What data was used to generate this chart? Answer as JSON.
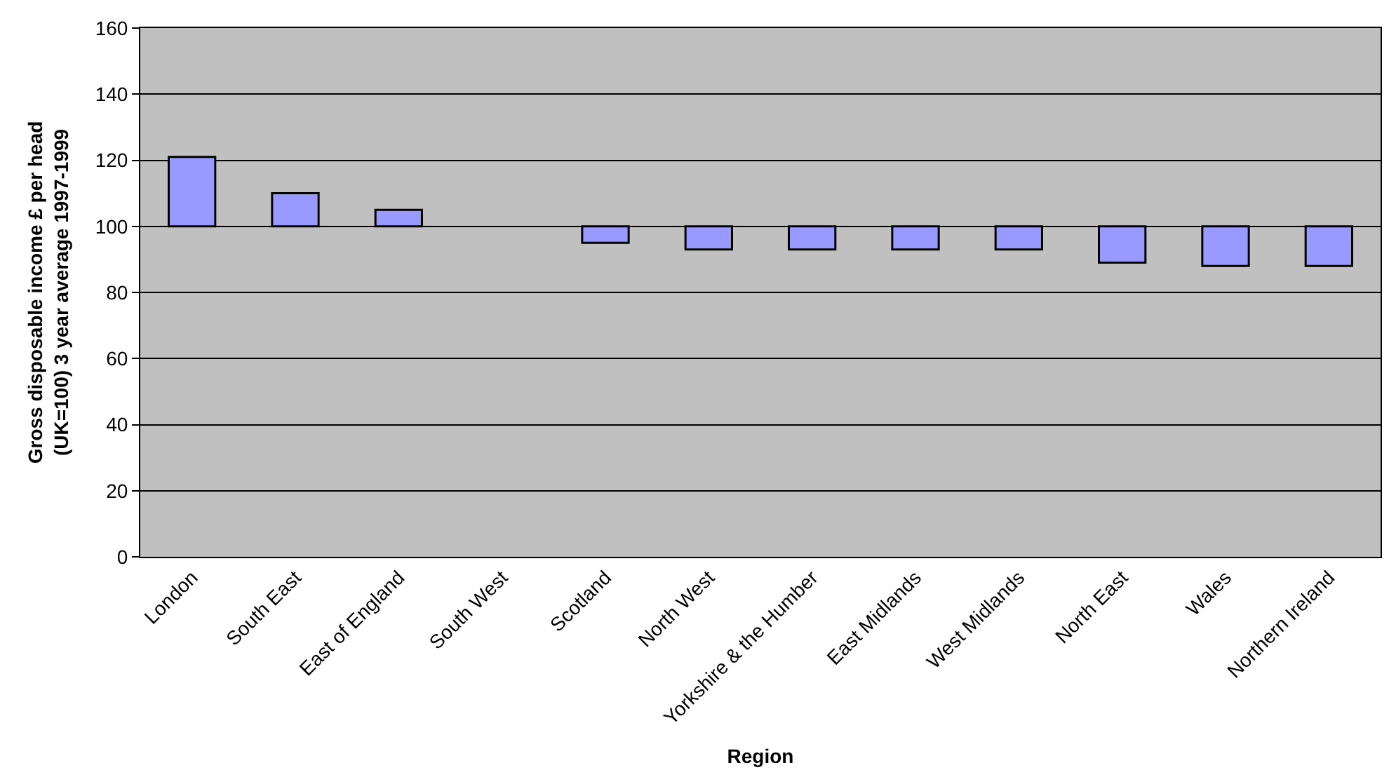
{
  "chart_data": {
    "type": "bar",
    "xlabel": "Region",
    "ylabel": "Gross disposable income £ per head (UK=100) 3 year average 1997-1999",
    "categories": [
      "London",
      "South East",
      "East of England",
      "South West",
      "Scotland",
      "North West",
      "Yorkshire & the Humber",
      "East Midlands",
      "West Midlands",
      "North East",
      "Wales",
      "Northern Ireland"
    ],
    "base": [
      100,
      100,
      100,
      null,
      100,
      100,
      100,
      100,
      100,
      100,
      100,
      100
    ],
    "values": [
      21,
      10,
      5,
      null,
      -5,
      -7,
      -7,
      -7,
      -7,
      -11,
      -12,
      -12
    ],
    "color": "#9999ff",
    "ylim": [
      0,
      160
    ],
    "yticks": [
      0,
      20,
      40,
      60,
      80,
      100,
      120,
      140,
      160
    ],
    "grid": "y",
    "legend": false
  }
}
